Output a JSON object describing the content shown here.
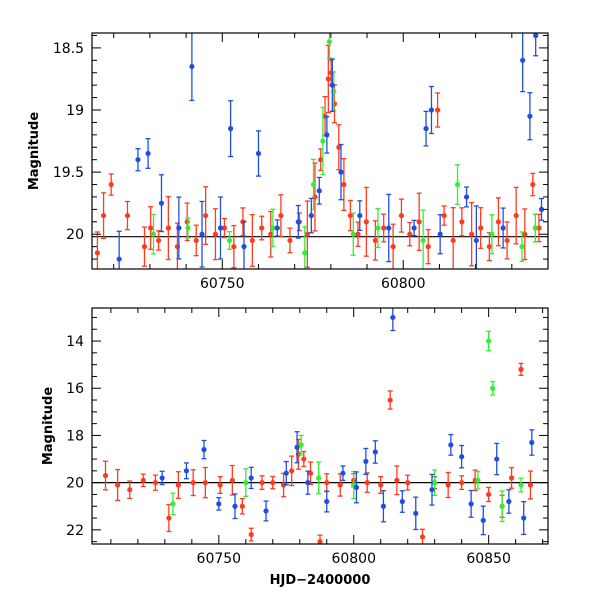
{
  "colors": {
    "blue": "#1f4fe0",
    "green": "#33ee33",
    "red": "#ff3b1e"
  },
  "chart_data": [
    {
      "type": "scatter",
      "title": "",
      "xlabel": "",
      "ylabel": "Magnitude",
      "xlim": [
        60714,
        60840
      ],
      "ylim": [
        20.28,
        18.38
      ],
      "y_inverted": true,
      "grid": false,
      "xticks": [
        60750,
        60800
      ],
      "yticks": [
        18.5,
        19,
        19.5,
        20
      ],
      "ytick_labels": [
        "18.5",
        "19",
        "19.5",
        "20"
      ],
      "reference_line": 20.02,
      "series": [
        {
          "color": "red",
          "points": [
            [
              60715.5,
              20.15
            ],
            [
              60717.2,
              19.85
            ],
            [
              60719.3,
              19.6
            ],
            [
              60723.8,
              19.85
            ],
            [
              60728.5,
              20.1
            ],
            [
              60730.2,
              19.95
            ],
            [
              60732.4,
              20.05
            ],
            [
              60735.1,
              19.95
            ],
            [
              60737.6,
              20.1
            ],
            [
              60740.3,
              19.9
            ],
            [
              60742.8,
              20.05
            ],
            [
              60745.4,
              19.85
            ],
            [
              60748.1,
              20.0
            ],
            [
              60750.6,
              19.95
            ],
            [
              60753.2,
              20.1
            ],
            [
              60755.7,
              19.9
            ],
            [
              60758.3,
              20.05
            ],
            [
              60760.9,
              19.95
            ],
            [
              60763.4,
              20.0
            ],
            [
              60766.2,
              19.85
            ],
            [
              60768.7,
              20.05
            ],
            [
              60771.3,
              19.9
            ],
            [
              60773.5,
              20.0
            ],
            [
              60775.6,
              19.7
            ],
            [
              60777.2,
              19.4
            ],
            [
              60778.4,
              19.05
            ],
            [
              60779.3,
              18.75
            ],
            [
              60780.1,
              18.7
            ],
            [
              60781.0,
              18.95
            ],
            [
              60782.2,
              19.3
            ],
            [
              60783.6,
              19.6
            ],
            [
              60785.4,
              19.85
            ],
            [
              60787.5,
              20.0
            ],
            [
              60789.8,
              19.9
            ],
            [
              60792.3,
              20.05
            ],
            [
              60794.6,
              19.95
            ],
            [
              60797.2,
              20.1
            ],
            [
              60799.5,
              19.85
            ],
            [
              60801.8,
              20.0
            ],
            [
              60804.4,
              19.9
            ],
            [
              60806.9,
              20.1
            ],
            [
              60809.5,
              19.0
            ],
            [
              60811.3,
              19.85
            ],
            [
              60813.8,
              20.05
            ],
            [
              60816.2,
              19.9
            ],
            [
              60818.9,
              20.0
            ],
            [
              60821.4,
              19.95
            ],
            [
              60823.8,
              20.1
            ],
            [
              60826.3,
              19.9
            ],
            [
              60828.7,
              20.05
            ],
            [
              60831.2,
              19.85
            ],
            [
              60833.6,
              20.0
            ],
            [
              60835.8,
              19.6
            ],
            [
              60837.5,
              19.95
            ]
          ]
        },
        {
          "color": "green",
          "points": [
            [
              60731.0,
              20.0
            ],
            [
              60740.5,
              19.95
            ],
            [
              60752.0,
              20.05
            ],
            [
              60764.0,
              19.95
            ],
            [
              60772.8,
              20.15
            ],
            [
              60775.2,
              19.6
            ],
            [
              60777.8,
              19.25
            ],
            [
              60779.6,
              18.45
            ],
            [
              60780.8,
              18.85
            ],
            [
              60786.2,
              20.0
            ],
            [
              60793.0,
              19.95
            ],
            [
              60805.5,
              20.05
            ],
            [
              60815.0,
              19.6
            ],
            [
              60824.5,
              20.0
            ],
            [
              60832.8,
              20.1
            ],
            [
              60836.5,
              19.95
            ]
          ]
        },
        {
          "color": "blue",
          "points": [
            [
              60721.5,
              20.2
            ],
            [
              60726.7,
              19.4
            ],
            [
              60729.5,
              19.35
            ],
            [
              60733.2,
              19.75
            ],
            [
              60738.0,
              19.95
            ],
            [
              60741.6,
              18.65
            ],
            [
              60744.4,
              20.0
            ],
            [
              60749.5,
              19.95
            ],
            [
              60752.3,
              19.15
            ],
            [
              60756.0,
              20.1
            ],
            [
              60760.0,
              19.35
            ],
            [
              60765.2,
              19.95
            ],
            [
              60771.0,
              19.9
            ],
            [
              60774.6,
              19.85
            ],
            [
              60776.8,
              19.65
            ],
            [
              60778.9,
              19.2
            ],
            [
              60780.4,
              18.8
            ],
            [
              60782.8,
              19.5
            ],
            [
              60788.0,
              19.85
            ],
            [
              60796.0,
              19.95
            ],
            [
              60803.0,
              19.95
            ],
            [
              60806.3,
              19.15
            ],
            [
              60807.8,
              19.0
            ],
            [
              60810.2,
              20.0
            ],
            [
              60817.5,
              19.7
            ],
            [
              60820.2,
              20.05
            ],
            [
              60827.6,
              19.95
            ],
            [
              60833.0,
              18.6
            ],
            [
              60835.0,
              19.05
            ],
            [
              60836.6,
              18.4
            ],
            [
              60838.2,
              19.8
            ]
          ]
        }
      ]
    },
    {
      "type": "scatter",
      "title": "",
      "xlabel": "HJD−2400000",
      "ylabel": "Magnitude",
      "xlim": [
        60703,
        60872
      ],
      "ylim": [
        22.6,
        12.6
      ],
      "y_inverted": true,
      "grid": false,
      "xticks": [
        60750,
        60800,
        60850
      ],
      "yticks": [
        14,
        16,
        18,
        20,
        22
      ],
      "ytick_labels": [
        "14",
        "16",
        "18",
        "20",
        "22"
      ],
      "reference_line": 20.0,
      "series": [
        {
          "color": "red",
          "points": [
            [
              60708.0,
              19.7
            ],
            [
              60712.5,
              20.1
            ],
            [
              60717.0,
              20.3
            ],
            [
              60722.0,
              19.9
            ],
            [
              60726.5,
              20.0
            ],
            [
              60731.5,
              21.5
            ],
            [
              60735.0,
              20.1
            ],
            [
              60740.5,
              20.0
            ],
            [
              60745.0,
              20.0
            ],
            [
              60750.5,
              20.1
            ],
            [
              60755.0,
              19.9
            ],
            [
              60758.7,
              21.0
            ],
            [
              60762.0,
              22.2
            ],
            [
              60766.0,
              20.0
            ],
            [
              60770.0,
              20.0
            ],
            [
              60774.0,
              20.1
            ],
            [
              60777.0,
              19.5
            ],
            [
              60779.5,
              18.8
            ],
            [
              60781.5,
              19.0
            ],
            [
              60784.0,
              19.6
            ],
            [
              60787.5,
              22.5
            ],
            [
              60790.0,
              20.0
            ],
            [
              60795.0,
              20.1
            ],
            [
              60800.0,
              19.9
            ],
            [
              60805.0,
              20.0
            ],
            [
              60810.0,
              20.1
            ],
            [
              60813.5,
              16.5
            ],
            [
              60816.0,
              19.9
            ],
            [
              60820.0,
              20.0
            ],
            [
              60825.5,
              22.3
            ],
            [
              60830.0,
              20.0
            ],
            [
              60835.0,
              20.1
            ],
            [
              60840.0,
              20.0
            ],
            [
              60845.0,
              19.9
            ],
            [
              60850.0,
              20.5
            ],
            [
              60855.0,
              21.0
            ],
            [
              60858.5,
              19.8
            ],
            [
              60862.0,
              15.2
            ],
            [
              60865.5,
              20.1
            ]
          ]
        },
        {
          "color": "green",
          "points": [
            [
              60733.0,
              20.9
            ],
            [
              60760.0,
              20.0
            ],
            [
              60780.5,
              18.4
            ],
            [
              60787.0,
              19.8
            ],
            [
              60800.0,
              20.1
            ],
            [
              60830.0,
              20.0
            ],
            [
              60846.0,
              19.9
            ],
            [
              60850.0,
              14.0
            ],
            [
              60851.5,
              16.0
            ],
            [
              60855.0,
              21.0
            ],
            [
              60862.0,
              20.1
            ]
          ]
        },
        {
          "color": "blue",
          "points": [
            [
              60729.0,
              19.8
            ],
            [
              60738.0,
              19.5
            ],
            [
              60744.5,
              18.6
            ],
            [
              60750.0,
              20.9
            ],
            [
              60756.0,
              21.0
            ],
            [
              60762.0,
              19.8
            ],
            [
              60767.5,
              21.2
            ],
            [
              60775.0,
              19.6
            ],
            [
              60779.0,
              18.5
            ],
            [
              60783.0,
              20.0
            ],
            [
              60790.0,
              20.8
            ],
            [
              60796.0,
              19.6
            ],
            [
              60801.0,
              20.2
            ],
            [
              60804.5,
              19.1
            ],
            [
              60808.0,
              18.7
            ],
            [
              60811.0,
              21.0
            ],
            [
              60814.5,
              13.0
            ],
            [
              60818.0,
              20.8
            ],
            [
              60823.0,
              21.3
            ],
            [
              60829.0,
              20.3
            ],
            [
              60836.0,
              18.4
            ],
            [
              60840.0,
              18.9
            ],
            [
              60843.5,
              20.9
            ],
            [
              60848.0,
              21.6
            ],
            [
              60853.0,
              19.0
            ],
            [
              60857.5,
              20.8
            ],
            [
              60863.0,
              21.5
            ],
            [
              60866.0,
              18.3
            ]
          ]
        }
      ]
    }
  ]
}
